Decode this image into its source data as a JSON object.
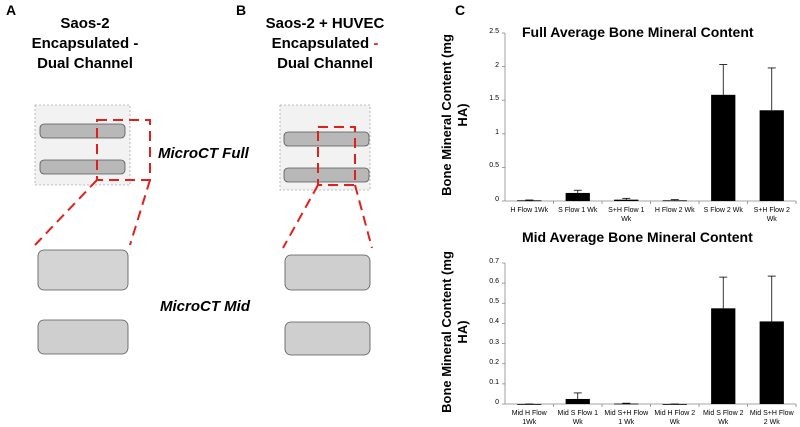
{
  "panels": {
    "a": {
      "label": "A",
      "title_lines": [
        "Saos-2",
        "Encapsulated",
        "-",
        "Dual Channel"
      ]
    },
    "b": {
      "label": "B",
      "title_lines": [
        "Saos-2 + HUVEC",
        "Encapsulated",
        "-",
        "Dual Channel"
      ]
    },
    "c": {
      "label": "C"
    },
    "scan_labels": [
      "MicroCT Full",
      "MicroCT Mid"
    ]
  },
  "chart_data": [
    {
      "type": "bar",
      "title": "Full Average Bone Mineral Content",
      "ylabel": "Bone Mineral Content (mg HA)",
      "categories": [
        "H Flow 1Wk",
        "S Flow 1 Wk",
        "S+H Flow 1 Wk",
        "H Flow 2 Wk",
        "S Flow 2 Wk",
        "S+H Flow 2 Wk"
      ],
      "values": [
        0.01,
        0.12,
        0.02,
        0.01,
        1.58,
        1.35
      ],
      "errors": [
        0.005,
        0.04,
        0.02,
        0.01,
        0.45,
        0.63
      ],
      "color": "#000000",
      "ylim": [
        0,
        2.5
      ],
      "yticks": [
        0,
        0.5,
        1,
        1.5,
        2,
        2.5
      ]
    },
    {
      "type": "bar",
      "title": "Mid Average Bone Mineral Content",
      "ylabel": "Bone Mineral Content (mg HA)",
      "categories": [
        "Mid H Flow 1Wk",
        "Mid S Flow 1 Wk",
        "Mid S+H Flow 1 Wk",
        "Mid H Flow 2 Wk",
        "Mid S Flow 2 Wk",
        "Mid S+H Flow 2 Wk"
      ],
      "values": [
        0,
        0.025,
        0.002,
        0,
        0.475,
        0.41
      ],
      "errors": [
        0,
        0.03,
        0.002,
        0,
        0.155,
        0.225
      ],
      "color": "#000000",
      "ylim": [
        0,
        0.7
      ],
      "yticks": [
        0,
        0.1,
        0.2,
        0.3,
        0.4,
        0.5,
        0.6,
        0.7
      ]
    }
  ]
}
